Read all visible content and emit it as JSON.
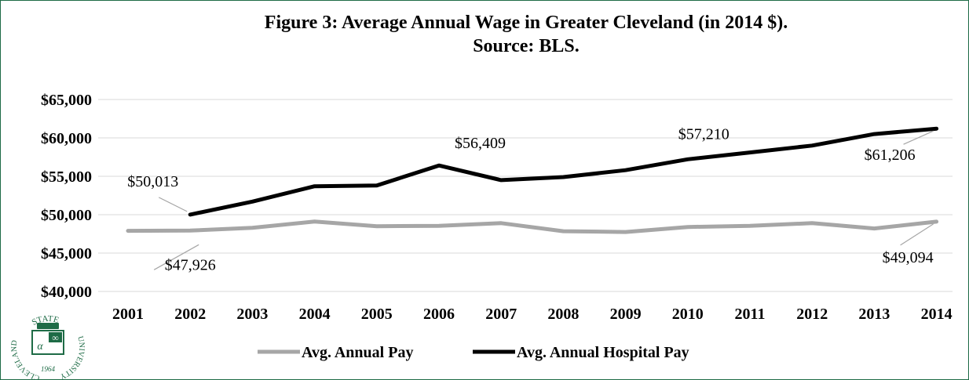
{
  "chart_data": {
    "type": "line",
    "title_lines": [
      "Figure 3: Average Annual Wage in Greater Cleveland (in 2014 $).",
      "Source: BLS."
    ],
    "categories": [
      "2001",
      "2002",
      "2003",
      "2004",
      "2005",
      "2006",
      "2007",
      "2008",
      "2009",
      "2010",
      "2011",
      "2012",
      "2013",
      "2014"
    ],
    "ylim": [
      40000,
      65000
    ],
    "yticks": [
      40000,
      45000,
      50000,
      55000,
      60000,
      65000
    ],
    "ytick_labels": [
      "$40,000",
      "$45,000",
      "$50,000",
      "$55,000",
      "$60,000",
      "$65,000"
    ],
    "grid": true,
    "legend_position": "bottom",
    "series": [
      {
        "name": "Avg. Annual Pay",
        "color": "#a6a6a6",
        "values": [
          47900,
          47926,
          48300,
          49100,
          48500,
          48550,
          48900,
          47850,
          47750,
          48400,
          48550,
          48900,
          48200,
          49094
        ],
        "data_labels": [
          {
            "index": 1,
            "text": "$47,926"
          },
          {
            "index": 13,
            "text": "$49,094"
          }
        ]
      },
      {
        "name": "Avg. Annual Hospital Pay",
        "color": "#000000",
        "values": [
          null,
          50013,
          51700,
          53700,
          53800,
          56409,
          54500,
          54900,
          55800,
          57210,
          58100,
          59000,
          60500,
          61206
        ],
        "data_labels": [
          {
            "index": 1,
            "text": "$50,013"
          },
          {
            "index": 5,
            "text": "$56,409"
          },
          {
            "index": 9,
            "text": "$57,210"
          },
          {
            "index": 13,
            "text": "$61,206"
          }
        ]
      }
    ]
  },
  "logo": {
    "text_top": "STATE",
    "text_left": "CLEVELAND",
    "text_right": "UNIVERSITY",
    "year": "1964",
    "glyph_alpha": "α",
    "glyph_infinity": "∞",
    "color": "#1e6b46"
  }
}
